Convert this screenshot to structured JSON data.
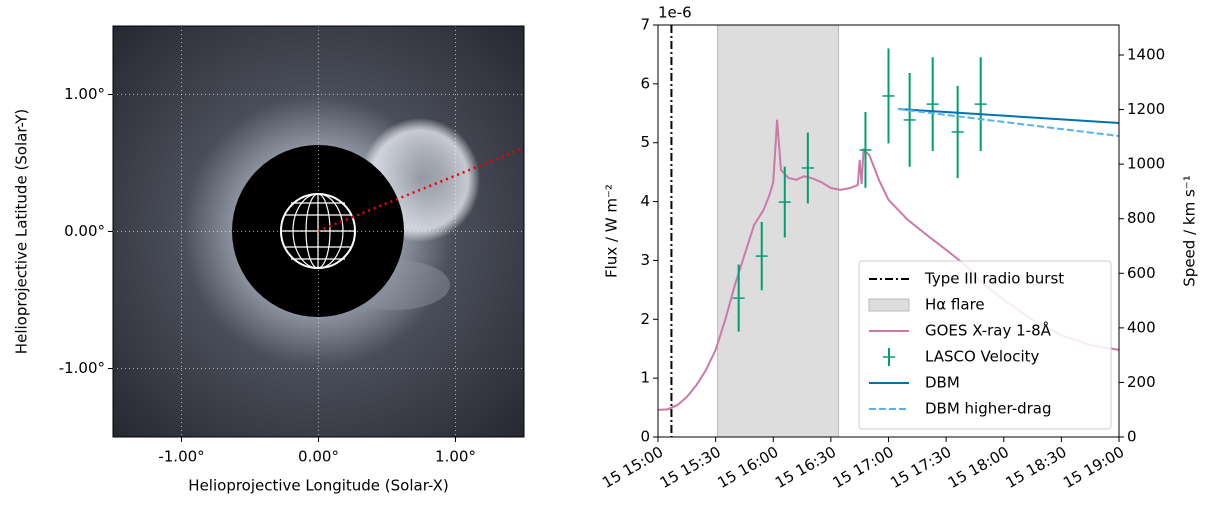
{
  "chart_data": [
    {
      "type": "image",
      "xlabel": "Helioprojective Longitude (Solar-X)",
      "ylabel": "Helioprojective Latitude (Solar-Y)",
      "xlim": [
        -1.5,
        1.5
      ],
      "ylim": [
        -1.5,
        1.5
      ],
      "xticks": [
        {
          "value": -1,
          "label": "-1.00°"
        },
        {
          "value": 0,
          "label": "0.00°"
        },
        {
          "value": 1,
          "label": "1.00°"
        }
      ],
      "yticks": [
        {
          "value": -1,
          "label": "-1.00°"
        },
        {
          "value": 0,
          "label": "0.00°"
        },
        {
          "value": 1,
          "label": "1.00°"
        }
      ],
      "grid": true
    },
    {
      "type": "line",
      "ylabel": "Flux / W m⁻²",
      "y2label": "Speed / km s⁻¹",
      "offset_text": "1e-6",
      "xlim": [
        "15 15:00",
        "15 19:00"
      ],
      "xticks": [
        "15 15:00",
        "15 15:30",
        "15 16:00",
        "15 16:30",
        "15 17:00",
        "15 17:30",
        "15 18:00",
        "15 18:30",
        "15 19:00"
      ],
      "ylim": [
        0,
        7
      ],
      "yticks": [
        0,
        1,
        2,
        3,
        4,
        5,
        6,
        7
      ],
      "y2lim": [
        0,
        1510
      ],
      "y2ticks": [
        0,
        200,
        400,
        600,
        800,
        1000,
        1200,
        1400
      ],
      "legend": "lower right",
      "series": [
        {
          "name": "Type III radio burst",
          "type": "vline",
          "color": "#000000",
          "x": [
            "15 15:07"
          ]
        },
        {
          "name": "Hα flare",
          "type": "span",
          "color": "#dddddd",
          "x": [
            "15 15:31",
            "15 16:34"
          ]
        },
        {
          "name": "GOES X-ray 1-8Å",
          "type": "line",
          "color": "#cc79a7",
          "x": [
            "15 15:00",
            "15 15:05",
            "15 15:10",
            "15 15:15",
            "15 15:20",
            "15 15:25",
            "15 15:30",
            "15 15:35",
            "15 15:40",
            "15 15:45",
            "15 15:50",
            "15 15:55",
            "15 15:58",
            "15 16:00",
            "15 16:02",
            "15 16:04",
            "15 16:08",
            "15 16:12",
            "15 16:16",
            "15 16:20",
            "15 16:25",
            "15 16:30",
            "15 16:35",
            "15 16:40",
            "15 16:44",
            "15 16:45",
            "15 16:46",
            "15 16:47",
            "15 16:50",
            "15 16:55",
            "15 17:00",
            "15 17:10",
            "15 17:20",
            "15 17:30",
            "15 17:40",
            "15 17:50",
            "15 18:00",
            "15 18:15",
            "15 18:30",
            "15 18:45",
            "15 19:00"
          ],
          "values": [
            0.46,
            0.47,
            0.54,
            0.68,
            0.88,
            1.14,
            1.48,
            1.99,
            2.58,
            3.09,
            3.6,
            3.86,
            4.11,
            4.33,
            5.39,
            4.54,
            4.4,
            4.37,
            4.43,
            4.4,
            4.33,
            4.23,
            4.2,
            4.23,
            4.28,
            4.71,
            4.3,
            4.88,
            4.79,
            4.37,
            4.03,
            3.69,
            3.43,
            3.18,
            2.92,
            2.58,
            2.33,
            1.99,
            1.73,
            1.56,
            1.48
          ]
        },
        {
          "name": "LASCO Velocity",
          "type": "errorbar",
          "color": "#009e73",
          "axis": "y2",
          "x": [
            "15 15:42",
            "15 15:54",
            "15 16:06",
            "15 16:18",
            "15 16:48",
            "15 17:00",
            "15 17:11",
            "15 17:23",
            "15 17:36",
            "15 17:48"
          ],
          "values": [
            509,
            663,
            861,
            986,
            1052,
            1250,
            1162,
            1220,
            1118,
            1220
          ],
          "errors": [
            123,
            125,
            130,
            130,
            139,
            174,
            172,
            172,
            169,
            172
          ]
        },
        {
          "name": "DBM",
          "type": "line",
          "color": "#0072b2",
          "axis": "y2",
          "x": [
            "15 17:05",
            "15 19:00"
          ],
          "values": [
            1202,
            1151
          ]
        },
        {
          "name": "DBM higher-drag",
          "type": "dashed",
          "color": "#56b4e9",
          "axis": "y2",
          "x": [
            "15 17:05",
            "15 19:00"
          ],
          "values": [
            1202,
            1103
          ]
        }
      ]
    }
  ]
}
